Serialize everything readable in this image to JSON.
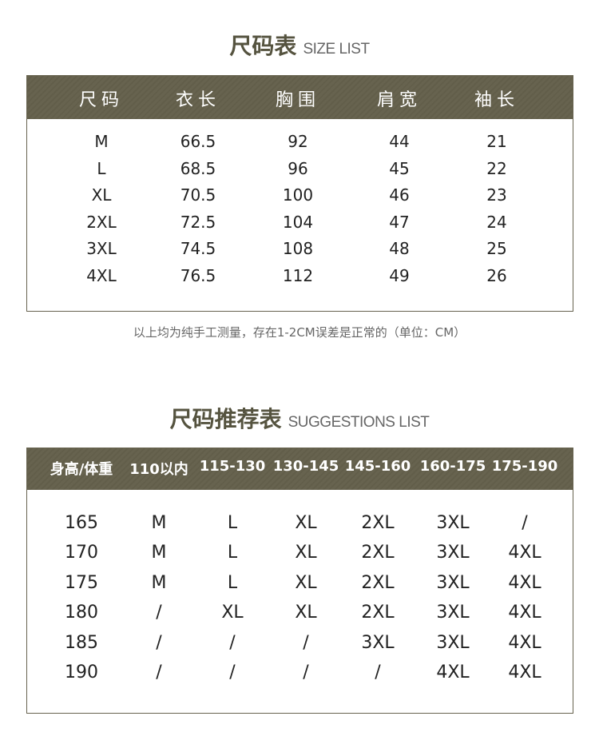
{
  "size_list": {
    "title_cn": "尺码表",
    "title_en": "SIZE LIST",
    "headers": [
      "尺码",
      "衣长",
      "胸围",
      "肩宽",
      "袖长"
    ],
    "rows": [
      [
        "M",
        "66.5",
        "92",
        "44",
        "21"
      ],
      [
        "L",
        "68.5",
        "96",
        "45",
        "22"
      ],
      [
        "XL",
        "70.5",
        "100",
        "46",
        "23"
      ],
      [
        "2XL",
        "72.5",
        "104",
        "47",
        "24"
      ],
      [
        "3XL",
        "74.5",
        "108",
        "48",
        "25"
      ],
      [
        "4XL",
        "76.5",
        "112",
        "49",
        "26"
      ]
    ],
    "note": "以上均为纯手工测量，存在1-2CM误差是正常的（单位：CM）"
  },
  "suggestions": {
    "title_cn": "尺码推荐表",
    "title_en": "SUGGESTIONS LIST",
    "headers": [
      "身高/体重",
      "110以内",
      "115-130",
      "130-145",
      "145-160",
      "160-175",
      "175-190"
    ],
    "rows": [
      [
        "165",
        "M",
        "L",
        "XL",
        "2XL",
        "3XL",
        "/"
      ],
      [
        "170",
        "M",
        "L",
        "XL",
        "2XL",
        "3XL",
        "4XL"
      ],
      [
        "175",
        "M",
        "L",
        "XL",
        "2XL",
        "3XL",
        "4XL"
      ],
      [
        "180",
        "/",
        "XL",
        "XL",
        "2XL",
        "3XL",
        "4XL"
      ],
      [
        "185",
        "/",
        "/",
        "/",
        "3XL",
        "3XL",
        "4XL"
      ],
      [
        "190",
        "/",
        "/",
        "/",
        "/",
        "4XL",
        "4XL"
      ]
    ]
  },
  "colors": {
    "header_bg": "#67634f",
    "title": "#55533f"
  }
}
